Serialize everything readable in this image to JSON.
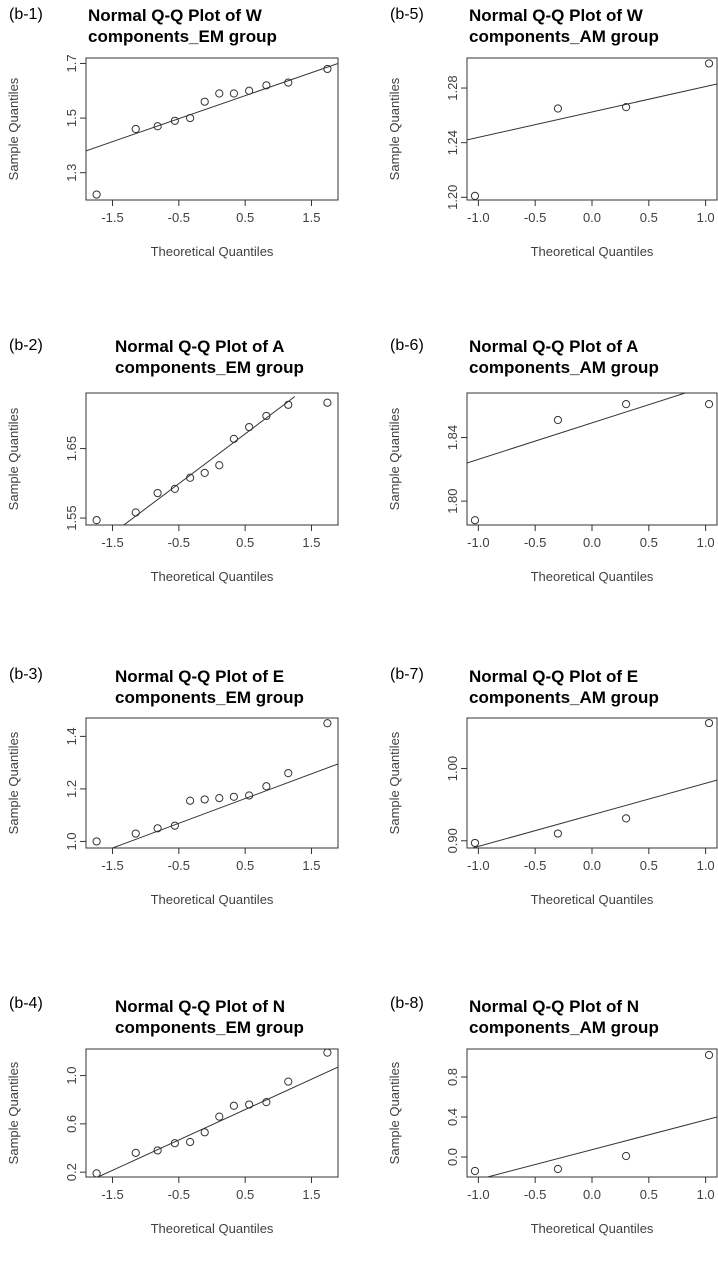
{
  "chart_data": [
    {
      "id": "b-1",
      "type": "scatter",
      "panel_label": "(b-1)",
      "title_lines": [
        "Normal Q-Q Plot of W",
        "components_EM group"
      ],
      "xlabel": "Theoretical Quantiles",
      "ylabel": "Sample Quantiles",
      "xlim": [
        -1.9,
        1.9
      ],
      "ylim": [
        1.2,
        1.72
      ],
      "xticks": [
        -1.5,
        -0.5,
        0.5,
        1.5
      ],
      "xtick_labels": [
        "-1.5",
        "-0.5",
        "0.5",
        "1.5"
      ],
      "yticks": [
        1.3,
        1.5,
        1.7
      ],
      "ytick_labels": [
        "1.3",
        "1.5",
        "1.7"
      ],
      "points": {
        "x": [
          -1.74,
          -1.15,
          -0.82,
          -0.56,
          -0.33,
          -0.11,
          0.11,
          0.33,
          0.56,
          0.82,
          1.15,
          1.74
        ],
        "y": [
          1.22,
          1.46,
          1.47,
          1.49,
          1.5,
          1.56,
          1.59,
          1.59,
          1.6,
          1.62,
          1.63,
          1.68
        ]
      },
      "line": {
        "x": [
          -1.9,
          1.9
        ],
        "y": [
          1.38,
          1.7
        ]
      }
    },
    {
      "id": "b-2",
      "type": "scatter",
      "panel_label": "(b-2)",
      "title_lines": [
        "Normal Q-Q Plot of A",
        "components_EM group"
      ],
      "xlabel": "Theoretical Quantiles",
      "ylabel": "Sample Quantiles",
      "xlim": [
        -1.9,
        1.9
      ],
      "ylim": [
        1.54,
        1.73
      ],
      "xticks": [
        -1.5,
        -0.5,
        0.5,
        1.5
      ],
      "xtick_labels": [
        "-1.5",
        "-0.5",
        "0.5",
        "1.5"
      ],
      "yticks": [
        1.55,
        1.65
      ],
      "ytick_labels": [
        "1.55",
        "1.65"
      ],
      "points": {
        "x": [
          -1.74,
          -1.15,
          -0.82,
          -0.56,
          -0.33,
          -0.11,
          0.11,
          0.33,
          0.56,
          0.82,
          1.15,
          1.74
        ],
        "y": [
          1.547,
          1.558,
          1.586,
          1.592,
          1.608,
          1.615,
          1.626,
          1.664,
          1.681,
          1.697,
          1.713,
          1.716
        ]
      },
      "line": {
        "x": [
          -1.4,
          1.25
        ],
        "y": [
          1.535,
          1.725
        ]
      }
    },
    {
      "id": "b-3",
      "type": "scatter",
      "panel_label": "(b-3)",
      "title_lines": [
        "Normal Q-Q Plot of E",
        "components_EM group"
      ],
      "xlabel": "Theoretical Quantiles",
      "ylabel": "Sample Quantiles",
      "xlim": [
        -1.9,
        1.9
      ],
      "ylim": [
        0.975,
        1.47
      ],
      "xticks": [
        -1.5,
        -0.5,
        0.5,
        1.5
      ],
      "xtick_labels": [
        "-1.5",
        "-0.5",
        "0.5",
        "1.5"
      ],
      "yticks": [
        1.0,
        1.2,
        1.4
      ],
      "ytick_labels": [
        "1.0",
        "1.2",
        "1.4"
      ],
      "points": {
        "x": [
          -1.74,
          -1.15,
          -0.82,
          -0.56,
          -0.33,
          -0.11,
          0.11,
          0.33,
          0.56,
          0.82,
          1.15,
          1.74
        ],
        "y": [
          1.0,
          1.03,
          1.05,
          1.06,
          1.155,
          1.16,
          1.165,
          1.17,
          1.175,
          1.21,
          1.26,
          1.45
        ]
      },
      "line": {
        "x": [
          -1.5,
          1.9
        ],
        "y": [
          0.975,
          1.295
        ]
      }
    },
    {
      "id": "b-4",
      "type": "scatter",
      "panel_label": "(b-4)",
      "title_lines": [
        "Normal Q-Q Plot of N",
        "components_EM group"
      ],
      "xlabel": "Theoretical Quantiles",
      "ylabel": "Sample Quantiles",
      "xlim": [
        -1.9,
        1.9
      ],
      "ylim": [
        0.16,
        1.22
      ],
      "xticks": [
        -1.5,
        -0.5,
        0.5,
        1.5
      ],
      "xtick_labels": [
        "-1.5",
        "-0.5",
        "0.5",
        "1.5"
      ],
      "yticks": [
        0.2,
        0.6,
        1.0
      ],
      "ytick_labels": [
        "0.2",
        "0.6",
        "1.0"
      ],
      "points": {
        "x": [
          -1.74,
          -1.15,
          -0.82,
          -0.56,
          -0.33,
          -0.11,
          0.11,
          0.33,
          0.56,
          0.82,
          1.15,
          1.74
        ],
        "y": [
          0.19,
          0.36,
          0.38,
          0.44,
          0.45,
          0.53,
          0.66,
          0.75,
          0.76,
          0.78,
          0.95,
          1.19
        ]
      },
      "line": {
        "x": [
          -1.72,
          1.9
        ],
        "y": [
          0.16,
          1.07
        ]
      }
    },
    {
      "id": "b-5",
      "type": "scatter",
      "panel_label": "(b-5)",
      "title_lines": [
        "Normal Q-Q Plot of W",
        "components_AM group"
      ],
      "xlabel": "Theoretical Quantiles",
      "ylabel": "Sample Quantiles",
      "xlim": [
        -1.1,
        1.1
      ],
      "ylim": [
        1.198,
        1.302
      ],
      "xticks": [
        -1.0,
        -0.5,
        0.0,
        0.5,
        1.0
      ],
      "xtick_labels": [
        "-1.0",
        "-0.5",
        "0.0",
        "0.5",
        "1.0"
      ],
      "yticks": [
        1.2,
        1.24,
        1.28
      ],
      "ytick_labels": [
        "1.20",
        "1.24",
        "1.28"
      ],
      "points": {
        "x": [
          -1.03,
          -0.3,
          0.3,
          1.03
        ],
        "y": [
          1.201,
          1.265,
          1.266,
          1.298
        ]
      },
      "line": {
        "x": [
          -1.1,
          1.1
        ],
        "y": [
          1.242,
          1.283
        ]
      }
    },
    {
      "id": "b-6",
      "type": "scatter",
      "panel_label": "(b-6)",
      "title_lines": [
        "Normal Q-Q Plot of A",
        "components_AM group"
      ],
      "xlabel": "Theoretical Quantiles",
      "ylabel": "Sample Quantiles",
      "xlim": [
        -1.1,
        1.1
      ],
      "ylim": [
        1.785,
        1.868
      ],
      "xticks": [
        -1.0,
        -0.5,
        0.0,
        0.5,
        1.0
      ],
      "xtick_labels": [
        "-1.0",
        "-0.5",
        "0.0",
        "0.5",
        "1.0"
      ],
      "yticks": [
        1.8,
        1.84
      ],
      "ytick_labels": [
        "1.80",
        "1.84"
      ],
      "points": {
        "x": [
          -1.03,
          -0.3,
          0.3,
          1.03
        ],
        "y": [
          1.788,
          1.851,
          1.861,
          1.861
        ]
      },
      "line": {
        "x": [
          -1.1,
          0.82
        ],
        "y": [
          1.824,
          1.868
        ]
      }
    },
    {
      "id": "b-7",
      "type": "scatter",
      "panel_label": "(b-7)",
      "title_lines": [
        "Normal Q-Q Plot of E",
        "components_AM group"
      ],
      "xlabel": "Theoretical Quantiles",
      "ylabel": "Sample Quantiles",
      "xlim": [
        -1.1,
        1.1
      ],
      "ylim": [
        0.89,
        1.07
      ],
      "xticks": [
        -1.0,
        -0.5,
        0.0,
        0.5,
        1.0
      ],
      "xtick_labels": [
        "-1.0",
        "-0.5",
        "0.0",
        "0.5",
        "1.0"
      ],
      "yticks": [
        0.9,
        1.0
      ],
      "ytick_labels": [
        "0.90",
        "1.00"
      ],
      "points": {
        "x": [
          -1.03,
          -0.3,
          0.3,
          1.03
        ],
        "y": [
          0.897,
          0.91,
          0.931,
          1.063
        ]
      },
      "line": {
        "x": [
          -1.05,
          1.1
        ],
        "y": [
          0.89,
          0.984
        ]
      }
    },
    {
      "id": "b-8",
      "type": "scatter",
      "panel_label": "(b-8)",
      "title_lines": [
        "Normal Q-Q Plot of N",
        "components_AM group"
      ],
      "xlabel": "Theoretical Quantiles",
      "ylabel": "Sample Quantiles",
      "xlim": [
        -1.1,
        1.1
      ],
      "ylim": [
        -0.2,
        1.08
      ],
      "xticks": [
        -1.0,
        -0.5,
        0.0,
        0.5,
        1.0
      ],
      "xtick_labels": [
        "-1.0",
        "-0.5",
        "0.0",
        "0.5",
        "1.0"
      ],
      "yticks": [
        0.0,
        0.4,
        0.8
      ],
      "ytick_labels": [
        "0.0",
        "0.4",
        "0.8"
      ],
      "points": {
        "x": [
          -1.03,
          -0.3,
          0.3,
          1.03
        ],
        "y": [
          -0.14,
          -0.12,
          0.01,
          1.02
        ]
      },
      "line": {
        "x": [
          -0.92,
          1.1
        ],
        "y": [
          -0.2,
          0.4
        ]
      }
    }
  ]
}
